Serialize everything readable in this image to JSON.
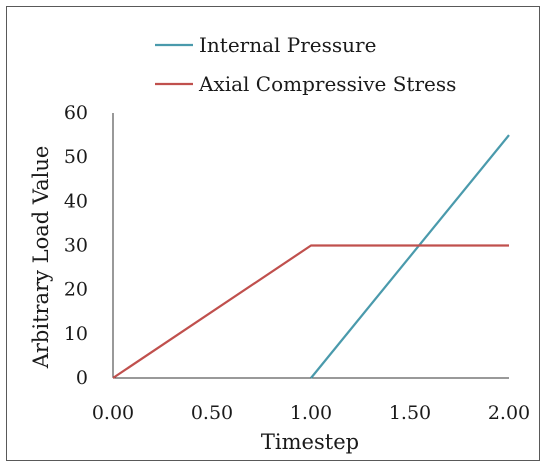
{
  "chart_data": {
    "type": "line",
    "title": "",
    "xlabel": "Timestep",
    "ylabel": "Arbitrary Load Value",
    "xlim": [
      0,
      2
    ],
    "ylim": [
      0,
      60
    ],
    "x_ticks": [
      "0.00",
      "0.50",
      "1.00",
      "1.50",
      "2.00"
    ],
    "y_ticks": [
      "0",
      "10",
      "20",
      "30",
      "40",
      "50",
      "60"
    ],
    "x_tick_values": [
      0,
      0.5,
      1,
      1.5,
      2
    ],
    "y_tick_values": [
      0,
      10,
      20,
      30,
      40,
      50,
      60
    ],
    "legend_position": "top",
    "grid": false,
    "series": [
      {
        "name": "Internal Pressure",
        "color": "#4a9aac",
        "x": [
          1.0,
          2.0
        ],
        "y": [
          0,
          55
        ]
      },
      {
        "name": "Axial Compressive Stress",
        "color": "#c0504d",
        "x": [
          0.0,
          1.0,
          2.0
        ],
        "y": [
          0,
          30,
          30
        ]
      }
    ]
  }
}
